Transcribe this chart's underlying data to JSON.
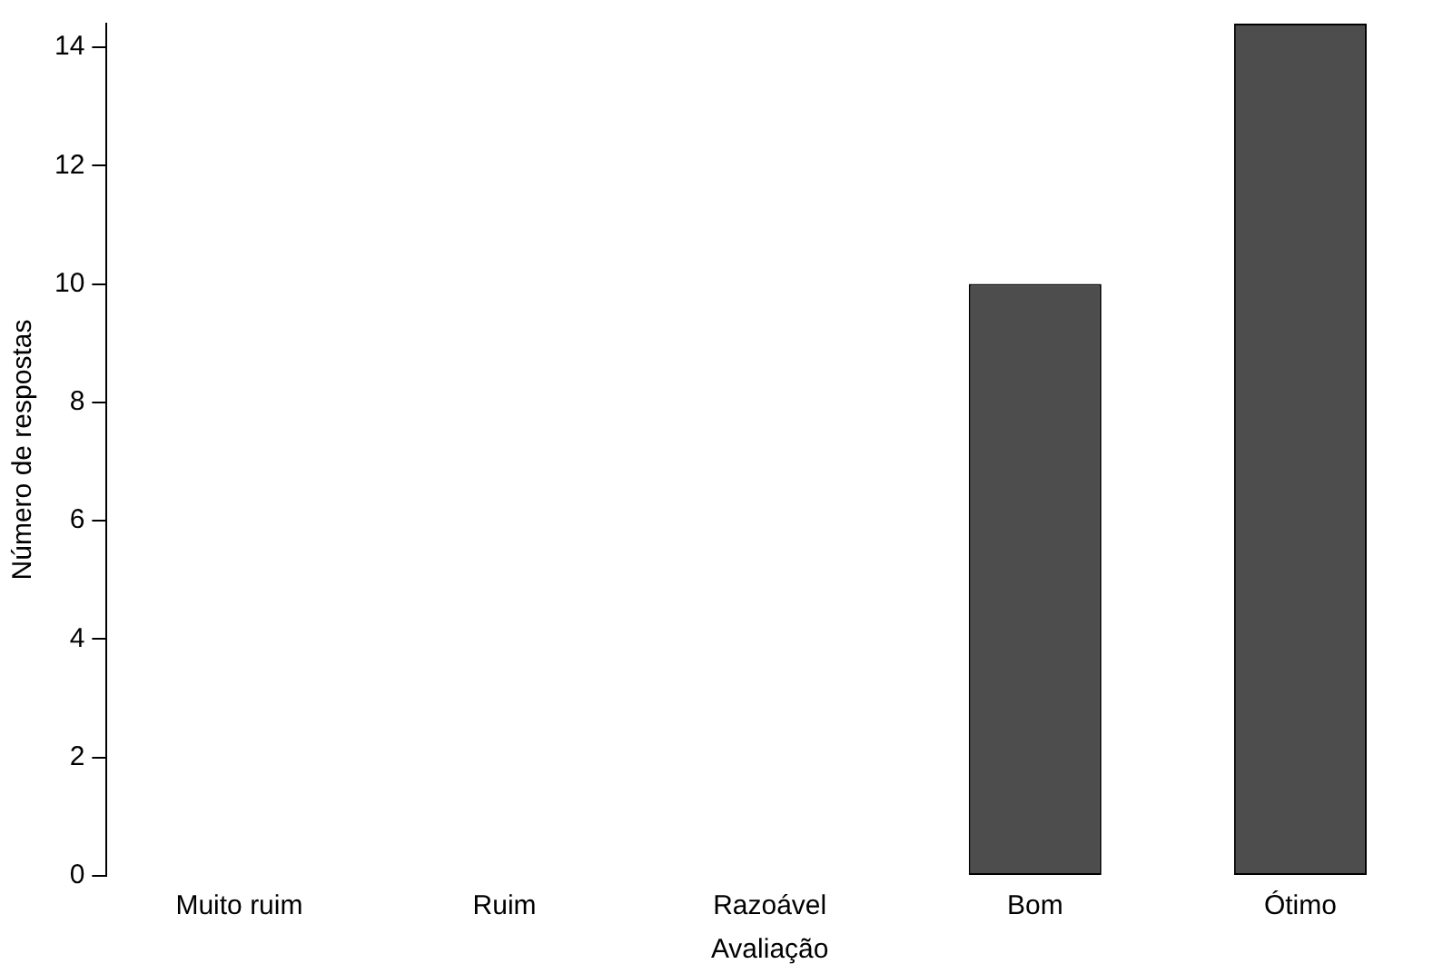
{
  "chart_data": {
    "type": "bar",
    "xlabel": "Avaliação",
    "ylabel": "Número de respostas",
    "categories": [
      "Muito ruim",
      "Ruim",
      "Razoável",
      "Bom",
      "Ótimo"
    ],
    "values": [
      0,
      0,
      0,
      10,
      14.4
    ],
    "color": "#4d4d4d",
    "ylim": [
      0,
      14.4
    ],
    "yticks": [
      0,
      2,
      4,
      6,
      8,
      10,
      12,
      14
    ],
    "grid": false,
    "legend": false
  }
}
